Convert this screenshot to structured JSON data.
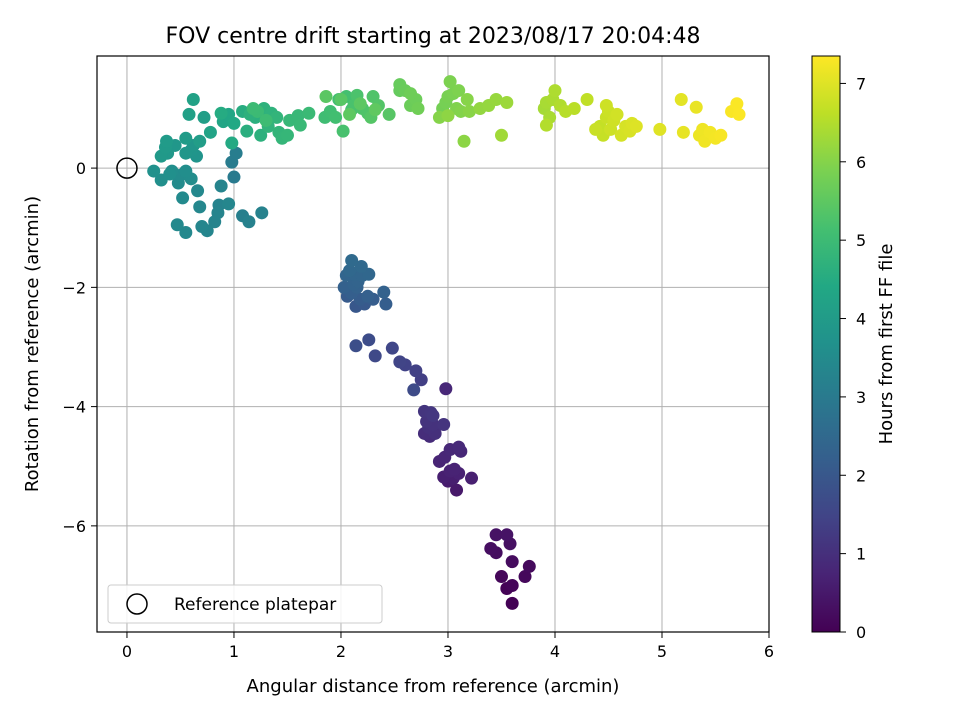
{
  "chart_data": {
    "type": "scatter",
    "title": "FOV centre drift starting at 2023/08/17 20:04:48",
    "xlabel": "Angular distance from reference (arcmin)",
    "ylabel": "Rotation from reference (arcmin)",
    "xlim": [
      -0.28,
      6.0
    ],
    "ylim": [
      -7.78,
      1.88
    ],
    "xticks": [
      0,
      1,
      2,
      3,
      4,
      5,
      6
    ],
    "yticks": [
      0,
      -2,
      -4,
      -6
    ],
    "ytick_labels": [
      "0",
      "−2",
      "−4",
      "−6"
    ],
    "grid": true,
    "colormap": "viridis",
    "colorbar": {
      "label": "Hours from first FF file",
      "range": [
        0,
        7.35
      ],
      "ticks": [
        0,
        1,
        2,
        3,
        4,
        5,
        6,
        7
      ]
    },
    "reference_point": {
      "x": 0,
      "y": 0,
      "marker": "open-circle"
    },
    "legend": {
      "position": "lower-left",
      "entries": [
        "Reference platepar"
      ]
    },
    "points": [
      [
        3.6,
        -7.3,
        0.02
      ],
      [
        3.55,
        -7.05,
        0.05
      ],
      [
        3.6,
        -7.0,
        0.08
      ],
      [
        3.5,
        -6.85,
        0.12
      ],
      [
        3.72,
        -6.85,
        0.15
      ],
      [
        3.76,
        -6.68,
        0.18
      ],
      [
        3.6,
        -6.6,
        0.22
      ],
      [
        3.45,
        -6.45,
        0.25
      ],
      [
        3.4,
        -6.38,
        0.28
      ],
      [
        3.58,
        -6.3,
        0.32
      ],
      [
        3.45,
        -6.15,
        0.35
      ],
      [
        3.55,
        -6.15,
        0.38
      ],
      [
        3.08,
        -5.4,
        0.5
      ],
      [
        3.0,
        -5.25,
        0.55
      ],
      [
        3.05,
        -5.2,
        0.6
      ],
      [
        2.96,
        -5.18,
        0.62
      ],
      [
        3.22,
        -5.2,
        0.65
      ],
      [
        3.1,
        -5.12,
        0.68
      ],
      [
        3.02,
        -5.08,
        0.7
      ],
      [
        3.06,
        -5.05,
        0.72
      ],
      [
        2.92,
        -4.92,
        0.75
      ],
      [
        2.97,
        -4.85,
        0.78
      ],
      [
        3.12,
        -4.75,
        0.8
      ],
      [
        3.02,
        -4.72,
        0.82
      ],
      [
        3.1,
        -4.68,
        0.85
      ],
      [
        2.98,
        -3.7,
        0.8
      ],
      [
        2.83,
        -4.5,
        0.9
      ],
      [
        2.78,
        -4.45,
        0.95
      ],
      [
        2.88,
        -4.45,
        1.0
      ],
      [
        2.82,
        -4.35,
        1.02
      ],
      [
        2.86,
        -4.3,
        1.05
      ],
      [
        2.8,
        -4.25,
        1.08
      ],
      [
        2.96,
        -4.3,
        1.1
      ],
      [
        2.78,
        -4.08,
        1.12
      ],
      [
        2.84,
        -4.1,
        1.15
      ],
      [
        2.86,
        -4.15,
        1.18
      ],
      [
        2.75,
        -3.55,
        1.35
      ],
      [
        2.7,
        -3.4,
        1.4
      ],
      [
        2.6,
        -3.3,
        1.45
      ],
      [
        2.55,
        -3.25,
        1.5
      ],
      [
        2.48,
        -3.02,
        1.55
      ],
      [
        2.32,
        -3.15,
        1.6
      ],
      [
        2.68,
        -3.72,
        1.65
      ],
      [
        2.26,
        -2.88,
        1.7
      ],
      [
        2.14,
        -2.98,
        1.75
      ],
      [
        2.14,
        -2.32,
        2.0
      ],
      [
        2.22,
        -2.28,
        2.05
      ],
      [
        2.06,
        -2.15,
        2.1
      ],
      [
        2.18,
        -2.2,
        2.12
      ],
      [
        2.3,
        -2.2,
        2.15
      ],
      [
        2.42,
        -2.28,
        2.18
      ],
      [
        2.1,
        -2.1,
        2.2
      ],
      [
        2.25,
        -2.15,
        2.22
      ],
      [
        2.03,
        -2.0,
        2.25
      ],
      [
        2.4,
        -2.08,
        2.28
      ],
      [
        2.15,
        -2.0,
        2.3
      ],
      [
        2.12,
        -1.95,
        2.32
      ],
      [
        2.16,
        -1.9,
        2.35
      ],
      [
        2.05,
        -1.8,
        2.38
      ],
      [
        2.13,
        -1.78,
        2.4
      ],
      [
        2.2,
        -1.8,
        2.42
      ],
      [
        2.26,
        -1.78,
        2.45
      ],
      [
        2.08,
        -1.72,
        2.48
      ],
      [
        2.19,
        -1.65,
        2.5
      ],
      [
        2.1,
        -1.55,
        2.52
      ],
      [
        1.0,
        -0.15,
        3.0
      ],
      [
        0.98,
        0.1,
        3.05
      ],
      [
        1.02,
        0.25,
        3.1
      ],
      [
        1.08,
        -0.8,
        3.15
      ],
      [
        1.14,
        -0.9,
        3.2
      ],
      [
        1.26,
        -0.75,
        3.22
      ],
      [
        0.86,
        -0.62,
        3.25
      ],
      [
        0.85,
        -0.75,
        3.28
      ],
      [
        0.82,
        -0.9,
        3.3
      ],
      [
        0.75,
        -1.05,
        3.32
      ],
      [
        0.7,
        -0.98,
        3.35
      ],
      [
        0.68,
        -0.65,
        3.38
      ],
      [
        0.66,
        -0.38,
        3.4
      ],
      [
        0.55,
        -1.08,
        3.42
      ],
      [
        0.47,
        -0.95,
        3.45
      ],
      [
        0.52,
        -0.5,
        3.48
      ],
      [
        0.48,
        -0.25,
        3.5
      ],
      [
        0.5,
        -0.12,
        3.52
      ],
      [
        0.6,
        -0.18,
        3.55
      ],
      [
        0.55,
        -0.05,
        3.58
      ],
      [
        0.42,
        -0.05,
        3.6
      ],
      [
        0.32,
        -0.2,
        3.62
      ],
      [
        0.4,
        -0.1,
        3.65
      ],
      [
        0.25,
        -0.05,
        3.68
      ],
      [
        0.95,
        -0.6,
        3.35
      ],
      [
        0.88,
        -0.3,
        3.3
      ],
      [
        0.65,
        0.2,
        3.78
      ],
      [
        0.6,
        0.3,
        3.8
      ],
      [
        0.55,
        0.25,
        3.82
      ],
      [
        0.62,
        0.38,
        3.85
      ],
      [
        0.45,
        0.38,
        3.88
      ],
      [
        0.38,
        0.25,
        3.9
      ],
      [
        0.32,
        0.2,
        3.92
      ],
      [
        0.36,
        0.35,
        3.95
      ],
      [
        0.37,
        0.45,
        3.98
      ],
      [
        0.55,
        0.5,
        4.0
      ],
      [
        0.68,
        0.45,
        4.05
      ],
      [
        0.72,
        0.85,
        4.1
      ],
      [
        0.58,
        0.9,
        4.15
      ],
      [
        0.62,
        1.15,
        4.2
      ],
      [
        0.78,
        0.6,
        4.25
      ],
      [
        0.9,
        0.78,
        4.3
      ],
      [
        0.95,
        0.9,
        4.35
      ],
      [
        1.0,
        0.75,
        4.4
      ],
      [
        0.98,
        0.42,
        4.45
      ],
      [
        0.88,
        0.92,
        4.5
      ],
      [
        1.08,
        0.95,
        4.55
      ],
      [
        1.12,
        0.62,
        4.6
      ],
      [
        1.2,
        0.85,
        4.62
      ],
      [
        1.25,
        0.55,
        4.65
      ],
      [
        1.15,
        0.9,
        4.68
      ],
      [
        1.28,
        1.0,
        4.7
      ],
      [
        1.35,
        0.92,
        4.72
      ],
      [
        1.32,
        0.7,
        4.75
      ],
      [
        1.4,
        0.85,
        4.78
      ],
      [
        1.42,
        0.6,
        4.8
      ],
      [
        1.45,
        0.5,
        4.82
      ],
      [
        1.5,
        0.55,
        4.85
      ],
      [
        1.52,
        0.8,
        4.88
      ],
      [
        1.6,
        0.88,
        4.9
      ],
      [
        1.62,
        0.72,
        4.92
      ],
      [
        1.7,
        0.92,
        4.95
      ],
      [
        1.22,
        0.95,
        4.98
      ],
      [
        1.18,
        1.0,
        5.0
      ],
      [
        1.3,
        0.8,
        5.02
      ],
      [
        1.85,
        0.85,
        5.05
      ],
      [
        1.9,
        0.95,
        5.08
      ],
      [
        1.95,
        0.85,
        5.1
      ],
      [
        1.98,
        1.15,
        5.12
      ],
      [
        2.05,
        1.2,
        5.15
      ],
      [
        2.1,
        0.98,
        5.18
      ],
      [
        2.02,
        0.62,
        5.2
      ],
      [
        2.12,
        1.05,
        5.22
      ],
      [
        2.15,
        1.22,
        5.25
      ],
      [
        2.2,
        1.0,
        5.28
      ],
      [
        2.25,
        0.92,
        5.3
      ],
      [
        2.3,
        1.2,
        5.32
      ],
      [
        2.35,
        1.05,
        5.35
      ],
      [
        2.28,
        0.85,
        5.38
      ],
      [
        2.45,
        0.9,
        5.4
      ],
      [
        2.0,
        1.15,
        5.42
      ],
      [
        1.86,
        1.2,
        5.45
      ],
      [
        2.18,
        1.08,
        5.48
      ],
      [
        2.08,
        0.9,
        5.5
      ],
      [
        2.32,
        0.98,
        5.52
      ],
      [
        2.55,
        1.3,
        5.6
      ],
      [
        2.55,
        1.4,
        5.62
      ],
      [
        2.6,
        1.3,
        5.65
      ],
      [
        2.65,
        1.05,
        5.68
      ],
      [
        2.7,
        1.15,
        5.7
      ],
      [
        2.65,
        1.25,
        5.72
      ],
      [
        2.72,
        1.0,
        5.75
      ],
      [
        2.95,
        1.0,
        5.8
      ],
      [
        2.98,
        1.1,
        5.82
      ],
      [
        3.0,
        1.2,
        5.85
      ],
      [
        3.05,
        1.25,
        5.88
      ],
      [
        3.02,
        1.45,
        5.9
      ],
      [
        3.1,
        1.3,
        5.92
      ],
      [
        3.08,
        1.0,
        5.95
      ],
      [
        3.12,
        0.95,
        5.98
      ],
      [
        2.92,
        0.85,
        6.0
      ],
      [
        3.18,
        1.15,
        6.02
      ],
      [
        3.2,
        0.95,
        6.05
      ],
      [
        3.15,
        0.45,
        6.08
      ],
      [
        3.0,
        0.88,
        6.1
      ],
      [
        3.3,
        1.0,
        6.15
      ],
      [
        3.38,
        1.05,
        6.18
      ],
      [
        3.45,
        1.15,
        6.2
      ],
      [
        3.55,
        1.1,
        6.25
      ],
      [
        3.5,
        0.55,
        6.3
      ],
      [
        3.9,
        1.0,
        6.35
      ],
      [
        3.92,
        1.1,
        6.38
      ],
      [
        3.95,
        0.85,
        6.4
      ],
      [
        3.98,
        1.15,
        6.42
      ],
      [
        4.0,
        1.3,
        6.45
      ],
      [
        4.05,
        1.05,
        6.48
      ],
      [
        3.92,
        0.72,
        6.5
      ],
      [
        4.1,
        0.95,
        6.55
      ],
      [
        4.18,
        1.0,
        6.58
      ],
      [
        4.3,
        1.15,
        6.65
      ],
      [
        4.42,
        0.7,
        6.7
      ],
      [
        4.45,
        0.55,
        6.72
      ],
      [
        4.48,
        0.85,
        6.75
      ],
      [
        4.5,
        0.95,
        6.78
      ],
      [
        4.52,
        0.65,
        6.8
      ],
      [
        4.55,
        0.8,
        6.82
      ],
      [
        4.58,
        0.9,
        6.85
      ],
      [
        4.62,
        0.55,
        6.88
      ],
      [
        4.48,
        1.05,
        6.8
      ],
      [
        4.66,
        0.7,
        6.9
      ],
      [
        4.7,
        0.62,
        6.92
      ],
      [
        4.72,
        0.75,
        6.95
      ],
      [
        4.76,
        0.7,
        6.98
      ],
      [
        4.38,
        0.65,
        6.75
      ],
      [
        4.98,
        0.65,
        7.0
      ],
      [
        5.18,
        1.15,
        7.05
      ],
      [
        5.2,
        0.6,
        7.1
      ],
      [
        5.32,
        1.02,
        7.12
      ],
      [
        5.35,
        0.55,
        7.15
      ],
      [
        5.38,
        0.65,
        7.18
      ],
      [
        5.4,
        0.45,
        7.2
      ],
      [
        5.45,
        0.6,
        7.22
      ],
      [
        5.5,
        0.5,
        7.25
      ],
      [
        5.55,
        0.55,
        7.28
      ],
      [
        5.65,
        0.95,
        7.3
      ],
      [
        5.7,
        1.08,
        7.32
      ],
      [
        5.72,
        0.9,
        7.33
      ]
    ]
  }
}
